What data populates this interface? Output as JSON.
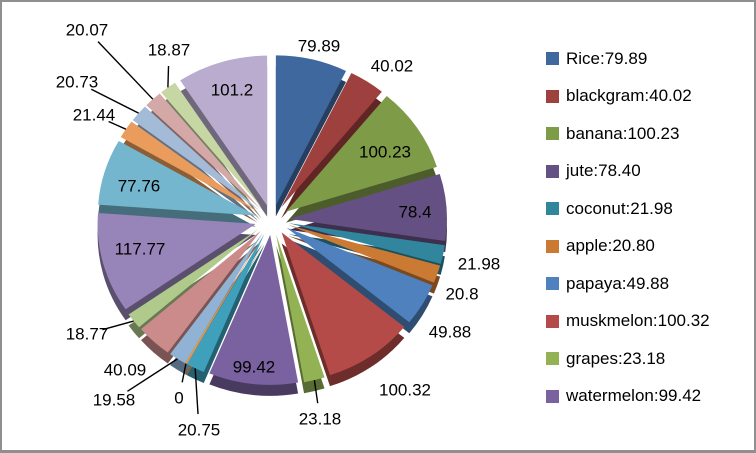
{
  "chart_data": {
    "type": "pie",
    "style": "3d-exploded",
    "title": "",
    "legend_position": "right",
    "background": "#FFFFFF",
    "border_color": "#8F8F8F",
    "label_color": "#000000",
    "points": [
      {
        "name": "Rice",
        "value": 79.89,
        "label": "79.89",
        "color": "#3F689E"
      },
      {
        "name": "blackgram",
        "value": 40.02,
        "label": "40.02",
        "color": "#9E403D"
      },
      {
        "name": "banana",
        "value": 100.23,
        "label": "100.23",
        "color": "#7E9B48"
      },
      {
        "name": "jute",
        "value": 78.4,
        "label": "78.4",
        "color": "#645082"
      },
      {
        "name": "coconut",
        "value": 21.98,
        "label": "21.98",
        "color": "#31859C"
      },
      {
        "name": "apple",
        "value": 20.8,
        "label": "20.8",
        "color": "#CB7A33"
      },
      {
        "name": "papaya",
        "value": 49.88,
        "label": "49.88",
        "color": "#4E81BD"
      },
      {
        "name": "muskmelon",
        "value": 100.32,
        "label": "100.32",
        "color": "#B54B48"
      },
      {
        "name": "grapes",
        "value": 23.18,
        "label": "23.18",
        "color": "#92B254"
      },
      {
        "name": "watermelon",
        "value": 99.42,
        "label": "99.42",
        "color": "#7A61A0"
      },
      {
        "value": 20.75,
        "label": "20.75",
        "color": "#3EA0BA"
      },
      {
        "value": 0,
        "label": "0",
        "color": "#E8963F"
      },
      {
        "value": 19.58,
        "label": "19.58",
        "color": "#8FB2D5"
      },
      {
        "value": 40.09,
        "label": "40.09",
        "color": "#CB8B8B"
      },
      {
        "value": 18.77,
        "label": "18.77",
        "color": "#AFCA8B"
      },
      {
        "value": 117.77,
        "label": "117.77",
        "color": "#9784B8"
      },
      {
        "value": 77.76,
        "label": "77.76",
        "color": "#73B6CD"
      },
      {
        "value": 21.44,
        "label": "21.44",
        "color": "#EA9C5C"
      },
      {
        "value": 20.73,
        "label": "20.73",
        "color": "#A4BBD8"
      },
      {
        "value": 20.07,
        "label": "20.07",
        "color": "#D5A8A8"
      },
      {
        "value": 18.87,
        "label": "18.87",
        "color": "#C6D7A4"
      },
      {
        "value": 101.2,
        "label": "101.2",
        "color": "#B9ACCE"
      }
    ],
    "legend": [
      "Rice:79.89",
      "blackgram:40.02",
      "banana:100.23",
      "jute:78.40",
      "coconut:21.98",
      "apple:20.80",
      "papaya:49.88",
      "muskmelon:100.32",
      "grapes:23.18",
      "watermelon:99.42"
    ]
  }
}
